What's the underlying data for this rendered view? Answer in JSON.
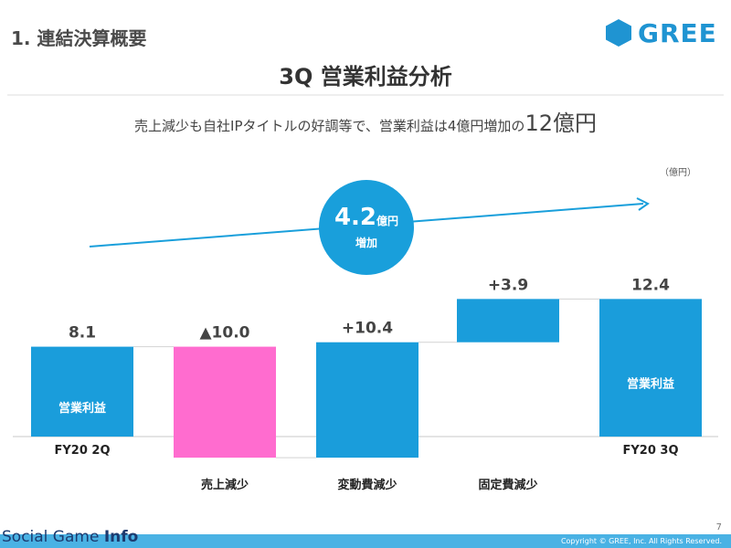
{
  "header": {
    "section_title": "1. 連結決算概要",
    "logo_text": "GREE",
    "main_title": "3Q 営業利益分析"
  },
  "subtitle": {
    "text": "売上減少も自社IPタイトルの好調等で、営業利益は4億円増加の",
    "emphasis": "12億円"
  },
  "unit_note": "（億円）",
  "badge": {
    "value": "4.2",
    "unit": "億円",
    "label": "増加"
  },
  "colors": {
    "bar_blue": "#1a9ddb",
    "bar_pink": "#ff6ccf",
    "accent_blue": "#199fdb",
    "logo_blue": "#1f94d2",
    "footer_blue": "#4ab2e4"
  },
  "chart_data": {
    "type": "bar",
    "subtype": "waterfall",
    "unit": "億円",
    "categories": [
      "FY20 2Q",
      "売上減少",
      "変動費減少",
      "固定費減少",
      "FY20 3Q"
    ],
    "bars": [
      {
        "category": "FY20 2Q",
        "kind": "total",
        "start": 0,
        "end": 8.1,
        "value_label": "8.1",
        "inner_label": "営業利益",
        "color": "#1a9ddb"
      },
      {
        "category": "売上減少",
        "kind": "decrease",
        "start": 8.1,
        "end": -1.9,
        "value_label": "▲10.0",
        "inner_label": "",
        "color": "#ff6ccf"
      },
      {
        "category": "変動費減少",
        "kind": "increase",
        "start": -1.9,
        "end": 8.5,
        "value_label": "+10.4",
        "inner_label": "",
        "color": "#1a9ddb"
      },
      {
        "category": "固定費減少",
        "kind": "increase",
        "start": 8.5,
        "end": 12.4,
        "value_label": "+3.9",
        "inner_label": "",
        "color": "#1a9ddb"
      },
      {
        "category": "FY20 3Q",
        "kind": "total",
        "start": 0,
        "end": 12.4,
        "value_label": "12.4",
        "inner_label": "営業利益",
        "color": "#1a9ddb"
      }
    ],
    "ylim": [
      -1.9,
      12.4
    ],
    "grid": false,
    "legend": "none",
    "annotation": "4.2億円 増加"
  },
  "footer": {
    "page_number": "7",
    "copyright": "Copyright © GREE, Inc. All Rights Reserved.",
    "watermark_a": "Social Game ",
    "watermark_b": "Info"
  }
}
